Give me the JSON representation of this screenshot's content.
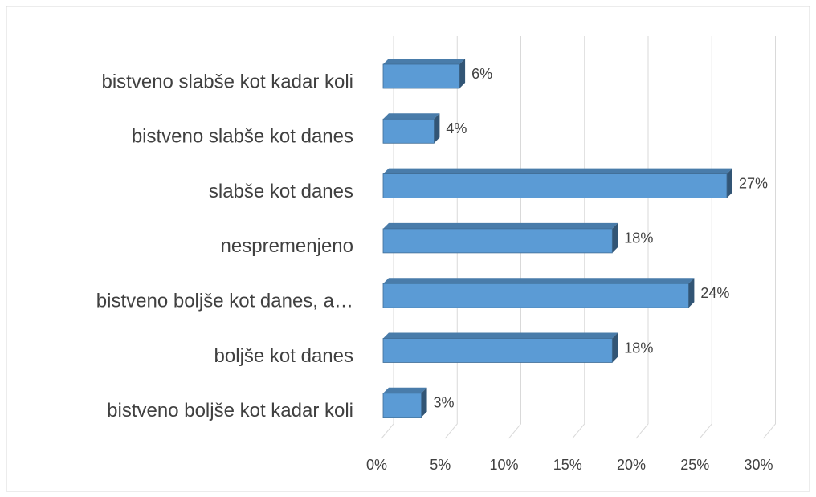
{
  "chart_data": {
    "type": "bar3d_horizontal",
    "categories": [
      "bistveno slabše kot kadar koli",
      "bistveno slabše kot danes",
      "slabše kot danes",
      "nespremenjeno",
      "bistveno boljše kot danes, a…",
      "boljše kot danes",
      "bistveno boljše kot kadar koli"
    ],
    "values": [
      6,
      4,
      27,
      18,
      24,
      18,
      3
    ],
    "value_labels": [
      "6%",
      "4%",
      "27%",
      "18%",
      "24%",
      "18%",
      "3%"
    ],
    "color": "#5b9bd5",
    "xlim": [
      0,
      30
    ],
    "xticks": [
      {
        "value": 0,
        "label": "0%"
      },
      {
        "value": 5,
        "label": "5%"
      },
      {
        "value": 10,
        "label": "10%"
      },
      {
        "value": 15,
        "label": "15%"
      },
      {
        "value": 20,
        "label": "20%"
      },
      {
        "value": 25,
        "label": "25%"
      },
      {
        "value": 30,
        "label": "30%"
      }
    ],
    "grid": true
  }
}
